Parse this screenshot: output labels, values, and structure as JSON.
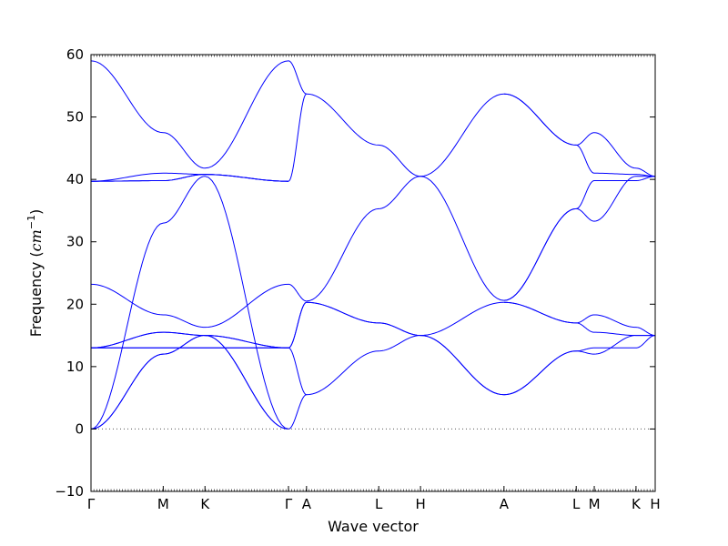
{
  "chart_data": {
    "type": "line",
    "title": "",
    "xlabel": "Wave vector",
    "ylabel": "Frequency",
    "ylabel_unit": "cm",
    "ylabel_unit_exponent": "−1",
    "ylim": [
      -10,
      60
    ],
    "yticks": [
      -10,
      0,
      10,
      20,
      30,
      40,
      50,
      60
    ],
    "xlim": [
      0,
      1
    ],
    "grid": false,
    "legend": "none",
    "line_color": "#0000ff",
    "zero_line": {
      "y": 0,
      "style": "dotted",
      "color": "#555555"
    },
    "kpoints": [
      {
        "label": "Γ",
        "x": 0.0
      },
      {
        "label": "M",
        "x": 0.128
      },
      {
        "label": "K",
        "x": 0.202
      },
      {
        "label": "Γ",
        "x": 0.35
      },
      {
        "label": "A",
        "x": 0.382
      },
      {
        "label": "L",
        "x": 0.51
      },
      {
        "label": "H",
        "x": 0.584
      },
      {
        "label": "A",
        "x": 0.732
      },
      {
        "label": "L",
        "x": 0.86
      },
      {
        "label": "M",
        "x": 0.892
      },
      {
        "label": "K",
        "x": 0.966
      },
      {
        "label": "H",
        "x": 1.0
      }
    ],
    "series": [
      {
        "points": [
          [
            0.0,
            0
          ],
          [
            0.128,
            12
          ],
          [
            0.202,
            15
          ],
          [
            0.35,
            0
          ]
        ]
      },
      {
        "points": [
          [
            0.0,
            0
          ],
          [
            0.128,
            12
          ],
          [
            0.202,
            15
          ],
          [
            0.35,
            0
          ]
        ]
      },
      {
        "points": [
          [
            0.0,
            0
          ],
          [
            0.128,
            33
          ],
          [
            0.202,
            40.5
          ],
          [
            0.35,
            0
          ]
        ]
      },
      {
        "points": [
          [
            0.0,
            13
          ],
          [
            0.128,
            13
          ],
          [
            0.202,
            13
          ],
          [
            0.35,
            13
          ]
        ]
      },
      {
        "points": [
          [
            0.0,
            13
          ],
          [
            0.128,
            13
          ],
          [
            0.202,
            13
          ],
          [
            0.35,
            13
          ]
        ]
      },
      {
        "points": [
          [
            0.0,
            13
          ],
          [
            0.128,
            15.5
          ],
          [
            0.202,
            15
          ],
          [
            0.35,
            13
          ]
        ]
      },
      {
        "points": [
          [
            0.0,
            13
          ],
          [
            0.128,
            15.5
          ],
          [
            0.202,
            15
          ],
          [
            0.35,
            13
          ]
        ]
      },
      {
        "points": [
          [
            0.0,
            23.2
          ],
          [
            0.128,
            18.3
          ],
          [
            0.202,
            16.3
          ],
          [
            0.35,
            23.2
          ]
        ]
      },
      {
        "points": [
          [
            0.0,
            39.7
          ],
          [
            0.128,
            39.8
          ],
          [
            0.202,
            40.8
          ],
          [
            0.35,
            39.7
          ]
        ]
      },
      {
        "points": [
          [
            0.0,
            39.7
          ],
          [
            0.128,
            39.8
          ],
          [
            0.202,
            40.8
          ],
          [
            0.35,
            39.7
          ]
        ]
      },
      {
        "points": [
          [
            0.0,
            39.7
          ],
          [
            0.128,
            41
          ],
          [
            0.202,
            40.8
          ],
          [
            0.35,
            39.7
          ]
        ]
      },
      {
        "points": [
          [
            0.0,
            59
          ],
          [
            0.128,
            47.5
          ],
          [
            0.202,
            41.8
          ],
          [
            0.35,
            59
          ]
        ]
      },
      {
        "points": [
          [
            0.35,
            0
          ],
          [
            0.382,
            5.5
          ]
        ]
      },
      {
        "points": [
          [
            0.35,
            13
          ],
          [
            0.382,
            5.5
          ]
        ]
      },
      {
        "points": [
          [
            0.35,
            13
          ],
          [
            0.382,
            20.3
          ]
        ]
      },
      {
        "points": [
          [
            0.35,
            13
          ],
          [
            0.382,
            20.3
          ]
        ]
      },
      {
        "points": [
          [
            0.35,
            23.2
          ],
          [
            0.382,
            20.5
          ]
        ]
      },
      {
        "points": [
          [
            0.35,
            39.7
          ],
          [
            0.382,
            53.7
          ]
        ]
      },
      {
        "points": [
          [
            0.35,
            59
          ],
          [
            0.382,
            53.7
          ]
        ]
      },
      {
        "points": [
          [
            0.382,
            5.5
          ],
          [
            0.51,
            12.5
          ],
          [
            0.584,
            15
          ],
          [
            0.732,
            20.3
          ]
        ]
      },
      {
        "points": [
          [
            0.382,
            20.3
          ],
          [
            0.51,
            17
          ],
          [
            0.584,
            15
          ],
          [
            0.732,
            5.5
          ]
        ]
      },
      {
        "points": [
          [
            0.382,
            20.3
          ],
          [
            0.51,
            17
          ],
          [
            0.584,
            15
          ],
          [
            0.732,
            5.5
          ]
        ]
      },
      {
        "points": [
          [
            0.382,
            20.5
          ],
          [
            0.51,
            35.3
          ],
          [
            0.584,
            40.5
          ],
          [
            0.732,
            53.7
          ]
        ]
      },
      {
        "points": [
          [
            0.382,
            53.7
          ],
          [
            0.51,
            45.5
          ],
          [
            0.584,
            40.5
          ],
          [
            0.732,
            20.6
          ]
        ]
      },
      {
        "points": [
          [
            0.732,
            5.5
          ],
          [
            0.86,
            12.5
          ],
          [
            0.892,
            12
          ],
          [
            0.966,
            15
          ],
          [
            1.0,
            15
          ]
        ]
      },
      {
        "points": [
          [
            0.732,
            5.5
          ],
          [
            0.86,
            12.5
          ],
          [
            0.892,
            13
          ],
          [
            0.966,
            13
          ],
          [
            1.0,
            15
          ]
        ]
      },
      {
        "points": [
          [
            0.732,
            20.3
          ],
          [
            0.86,
            17
          ],
          [
            0.892,
            15.5
          ],
          [
            0.966,
            15
          ],
          [
            1.0,
            15
          ]
        ]
      },
      {
        "points": [
          [
            0.732,
            20.3
          ],
          [
            0.86,
            17
          ],
          [
            0.892,
            18.3
          ],
          [
            0.966,
            16.3
          ],
          [
            1.0,
            15
          ]
        ]
      },
      {
        "points": [
          [
            0.732,
            20.6
          ],
          [
            0.86,
            35.3
          ],
          [
            0.892,
            33.3
          ],
          [
            0.966,
            40.5
          ],
          [
            1.0,
            40.5
          ]
        ]
      },
      {
        "points": [
          [
            0.732,
            20.6
          ],
          [
            0.86,
            35.3
          ],
          [
            0.892,
            39.8
          ],
          [
            0.966,
            39.8
          ],
          [
            1.0,
            40.5
          ]
        ]
      },
      {
        "points": [
          [
            0.732,
            53.7
          ],
          [
            0.86,
            45.5
          ],
          [
            0.892,
            41
          ],
          [
            0.966,
            40.8
          ],
          [
            1.0,
            40.5
          ]
        ]
      },
      {
        "points": [
          [
            0.732,
            53.7
          ],
          [
            0.86,
            45.5
          ],
          [
            0.892,
            47.5
          ],
          [
            0.966,
            41.8
          ],
          [
            1.0,
            40.5
          ]
        ]
      }
    ]
  }
}
